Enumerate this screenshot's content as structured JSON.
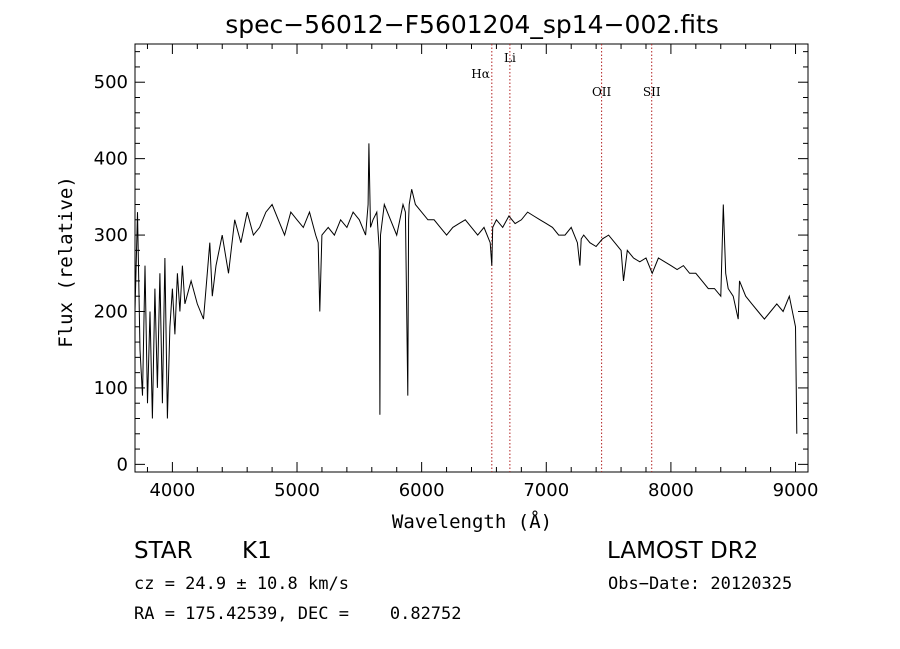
{
  "chart_data": {
    "type": "line",
    "title": "spec−56012−F5601204_sp14−002.fits",
    "xlabel": "Wavelength (Å)",
    "ylabel": "Flux (relative)",
    "xlim": [
      3700,
      9100
    ],
    "ylim": [
      -10,
      550
    ],
    "xticks": [
      4000,
      5000,
      6000,
      7000,
      8000,
      9000
    ],
    "yticks": [
      0,
      100,
      200,
      300,
      400,
      500
    ],
    "grid": false,
    "series": [
      {
        "x": [
          3700,
          3720,
          3740,
          3760,
          3780,
          3800,
          3820,
          3840,
          3860,
          3880,
          3900,
          3920,
          3940,
          3960,
          3980,
          4000,
          4020,
          4040,
          4060,
          4080,
          4100,
          4150,
          4200,
          4250,
          4300,
          4320,
          4350,
          4400,
          4450,
          4500,
          4550,
          4600,
          4650,
          4700,
          4750,
          4800,
          4850,
          4900,
          4950,
          5000,
          5050,
          5100,
          5150,
          5170,
          5183,
          5200,
          5250,
          5300,
          5350,
          5400,
          5450,
          5500,
          5550,
          5570,
          5577,
          5590,
          5610,
          5640,
          5660,
          5665,
          5670,
          5700,
          5750,
          5800,
          5850,
          5870,
          5889,
          5895,
          5900,
          5920,
          5950,
          6000,
          6050,
          6100,
          6150,
          6200,
          6250,
          6300,
          6350,
          6400,
          6450,
          6500,
          6550,
          6563,
          6570,
          6600,
          6650,
          6700,
          6750,
          6800,
          6850,
          6900,
          6950,
          7000,
          7050,
          7100,
          7150,
          7200,
          7250,
          7270,
          7280,
          7300,
          7350,
          7400,
          7450,
          7500,
          7550,
          7600,
          7620,
          7650,
          7700,
          7750,
          7800,
          7850,
          7900,
          7950,
          8000,
          8050,
          8100,
          8150,
          8200,
          8250,
          8300,
          8350,
          8400,
          8420,
          8440,
          8460,
          8500,
          8540,
          8550,
          8600,
          8650,
          8700,
          8750,
          8800,
          8850,
          8900,
          8950,
          9000,
          9010
        ],
        "values": [
          200,
          330,
          150,
          90,
          260,
          80,
          200,
          60,
          230,
          100,
          250,
          80,
          270,
          60,
          180,
          230,
          170,
          250,
          200,
          260,
          210,
          240,
          210,
          190,
          290,
          220,
          260,
          300,
          250,
          320,
          290,
          330,
          300,
          310,
          330,
          340,
          320,
          300,
          330,
          320,
          310,
          330,
          300,
          290,
          200,
          300,
          310,
          300,
          320,
          310,
          330,
          320,
          300,
          340,
          420,
          310,
          320,
          330,
          280,
          65,
          300,
          340,
          320,
          300,
          340,
          330,
          90,
          320,
          340,
          360,
          340,
          330,
          320,
          320,
          310,
          300,
          310,
          315,
          320,
          310,
          300,
          310,
          290,
          260,
          310,
          320,
          310,
          325,
          315,
          320,
          330,
          325,
          320,
          315,
          310,
          300,
          300,
          310,
          290,
          260,
          295,
          300,
          290,
          285,
          295,
          300,
          290,
          280,
          240,
          280,
          270,
          265,
          270,
          250,
          270,
          265,
          260,
          255,
          260,
          250,
          250,
          240,
          230,
          230,
          220,
          340,
          250,
          230,
          220,
          190,
          240,
          220,
          210,
          200,
          190,
          200,
          210,
          200,
          220,
          180,
          40
        ]
      }
    ],
    "annotations": [
      {
        "label": "Hα",
        "x": 6563
      },
      {
        "label": "Li",
        "x": 6708
      },
      {
        "label": "OII",
        "x": 7444
      },
      {
        "label": "SII",
        "x": 7846
      }
    ]
  },
  "info": {
    "class": "STAR",
    "subclass": "K1",
    "survey": "LAMOST DR2",
    "cz": "cz = 24.9 ± 10.8 km/s",
    "obs_date": "Obs−Date: 20120325",
    "radec": "RA = 175.42539, DEC =    0.82752"
  }
}
